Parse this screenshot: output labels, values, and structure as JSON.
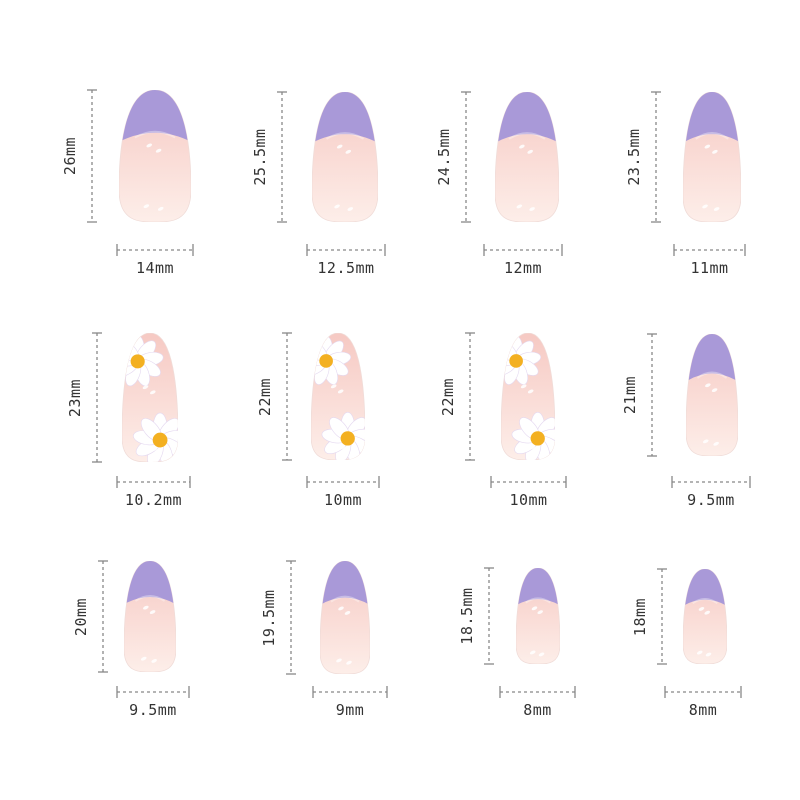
{
  "colors": {
    "tip": "#a999d8",
    "tip_dark": "#8f7dc9",
    "body_top": "#f6c9c3",
    "body_bottom": "#fdeee9",
    "guide": "#888888",
    "daisy_petal": "#ffffff",
    "daisy_center": "#f3b021"
  },
  "nails": [
    {
      "length": "26mm",
      "width": "14mm",
      "style": "purple-french-tip"
    },
    {
      "length": "25.5mm",
      "width": "12.5mm",
      "style": "purple-french-tip"
    },
    {
      "length": "24.5mm",
      "width": "12mm",
      "style": "purple-french-tip"
    },
    {
      "length": "23.5mm",
      "width": "11mm",
      "style": "purple-french-tip"
    },
    {
      "length": "23mm",
      "width": "10.2mm",
      "style": "daisy"
    },
    {
      "length": "22mm",
      "width": "10mm",
      "style": "daisy"
    },
    {
      "length": "22mm",
      "width": "10mm",
      "style": "daisy"
    },
    {
      "length": "21mm",
      "width": "9.5mm",
      "style": "purple-french-tip"
    },
    {
      "length": "20mm",
      "width": "9.5mm",
      "style": "purple-french-tip"
    },
    {
      "length": "19.5mm",
      "width": "9mm",
      "style": "purple-french-tip"
    },
    {
      "length": "18.5mm",
      "width": "8mm",
      "style": "purple-french-tip"
    },
    {
      "length": "18mm",
      "width": "8mm",
      "style": "purple-french-tip"
    }
  ]
}
